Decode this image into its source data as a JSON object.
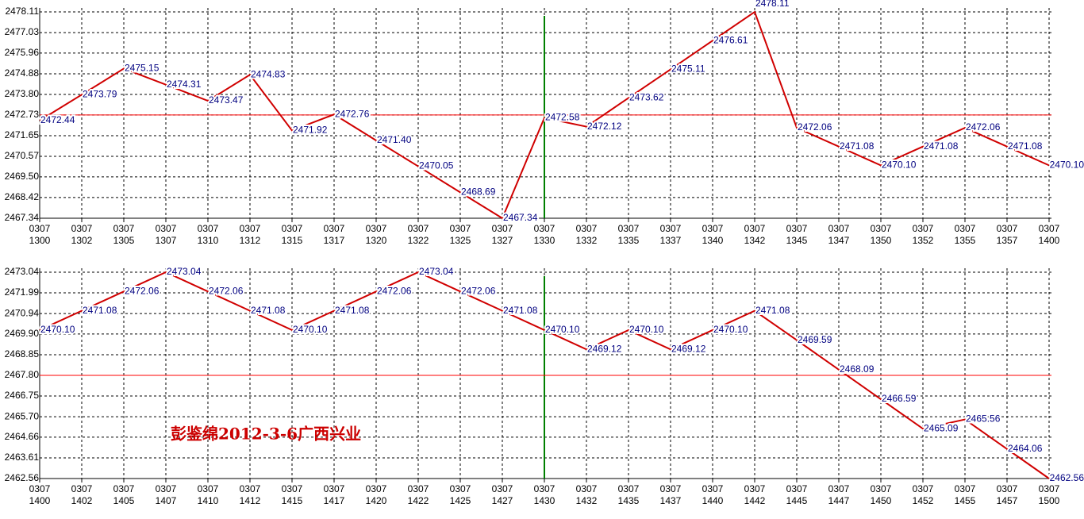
{
  "chart_data": [
    {
      "type": "line",
      "categories": [
        "0307\n1300",
        "0307\n1302",
        "0307\n1305",
        "0307\n1307",
        "0307\n1310",
        "0307\n1312",
        "0307\n1315",
        "0307\n1317",
        "0307\n1320",
        "0307\n1322",
        "0307\n1325",
        "0307\n1327",
        "0307\n1330",
        "0307\n1332",
        "0307\n1335",
        "0307\n1337",
        "0307\n1340",
        "0307\n1342",
        "0307\n1345",
        "0307\n1347",
        "0307\n1350",
        "0307\n1352",
        "0307\n1355",
        "0307\n1357",
        "0307\n1400"
      ],
      "values": [
        2472.44,
        2473.79,
        2475.15,
        2474.31,
        2473.47,
        2474.83,
        2471.92,
        2472.76,
        2471.4,
        2470.05,
        2468.69,
        2467.34,
        2472.58,
        2472.12,
        2473.62,
        2475.11,
        2476.61,
        2478.11,
        2472.06,
        2471.08,
        2470.1,
        2471.08,
        2472.06,
        2471.08,
        2470.1
      ],
      "value_labels": [
        "2472.44",
        "2473.79",
        "2475.15",
        "2474.31",
        "2473.47",
        "2474.83",
        "2471.92",
        "2472.76",
        "2471.40",
        "2470.05",
        "2468.69",
        "2467.34",
        "2472.58",
        "2472.12",
        "2473.62",
        "2475.11",
        "2476.61",
        "2478.11",
        "2472.06",
        "2471.08",
        "2470.10",
        "2471.08",
        "2472.06",
        "2471.08",
        "2470.10"
      ],
      "color": "#d00000",
      "ylim": [
        2467.34,
        2478.11
      ],
      "yticks": [
        2467.34,
        2468.42,
        {
          "value": 2469.5,
          "label": "2469.50"
        },
        2470.57,
        2471.65,
        2472.73,
        {
          "value": 2473.8,
          "label": "2473.80"
        },
        2474.88,
        2475.96,
        2477.03,
        2478.11
      ],
      "hline": 2472.73,
      "grid": true
    },
    {
      "type": "line",
      "categories": [
        "0307\n1400",
        "0307\n1402",
        "0307\n1405",
        "0307\n1407",
        "0307\n1410",
        "0307\n1412",
        "0307\n1415",
        "0307\n1417",
        "0307\n1420",
        "0307\n1422",
        "0307\n1425",
        "0307\n1427",
        "0307\n1430",
        "0307\n1432",
        "0307\n1435",
        "0307\n1437",
        "0307\n1440",
        "0307\n1442",
        "0307\n1445",
        "0307\n1447",
        "0307\n1450",
        "0307\n1452",
        "0307\n1455",
        "0307\n1457",
        "0307\n1500"
      ],
      "values": [
        2470.1,
        2471.08,
        2472.06,
        2473.04,
        2472.06,
        2471.08,
        2470.1,
        2471.08,
        2472.06,
        2473.04,
        2472.06,
        2471.08,
        2470.1,
        2469.12,
        2470.1,
        2469.12,
        2470.1,
        2471.08,
        2469.59,
        2468.09,
        2466.59,
        2465.09,
        2465.56,
        2464.06,
        2462.56
      ],
      "value_labels": [
        "2470.10",
        "2471.08",
        "2472.06",
        "2473.04",
        "2472.06",
        "2471.08",
        "2470.10",
        "2471.08",
        "2472.06",
        "2473.04",
        "2472.06",
        "2471.08",
        "2470.10",
        "2469.12",
        "2470.10",
        "2469.12",
        "2470.10",
        "2471.08",
        "2469.59",
        "2468.09",
        "2466.59",
        "2465.09",
        "2465.56",
        "2464.06",
        "2462.56"
      ],
      "color": "#d00000",
      "ylim": [
        2462.56,
        2473.04
      ],
      "yticks": [
        2462.56,
        2463.61,
        2464.66,
        {
          "value": 2465.7,
          "label": "2465.70"
        },
        2466.75,
        {
          "value": 2467.8,
          "label": "2467.80"
        },
        2468.85,
        {
          "value": 2469.9,
          "label": "2469.90"
        },
        2470.94,
        2471.99,
        2473.04
      ],
      "hline": 2467.8,
      "annotation": "彭鉴绵2012-3-6广西兴业",
      "grid": true
    }
  ]
}
